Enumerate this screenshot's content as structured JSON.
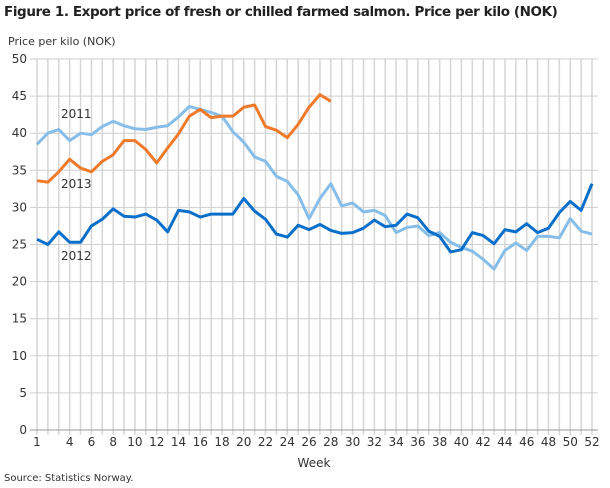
{
  "chart_data": {
    "type": "line",
    "title": "Figure 1. Export price of fresh or chilled farmed salmon. Price per kilo (NOK)",
    "ylabel": "Price per kilo (NOK)",
    "xlabel": "Week",
    "source": "Source: Statistics Norway.",
    "ylim": [
      0,
      50
    ],
    "yticks": [
      0,
      5,
      10,
      15,
      20,
      25,
      30,
      35,
      40,
      45,
      50
    ],
    "xlim": [
      1,
      52
    ],
    "xticks": [
      1,
      4,
      6,
      8,
      10,
      12,
      14,
      16,
      18,
      20,
      22,
      24,
      26,
      28,
      30,
      32,
      34,
      36,
      38,
      40,
      42,
      44,
      46,
      48,
      50,
      52
    ],
    "grid": true,
    "series": [
      {
        "name": "2011",
        "color": "#86bde9",
        "values": [
          38.5,
          40,
          40.5,
          39,
          40,
          39.8,
          40.9,
          41.6,
          41,
          40.6,
          40.5,
          40.8,
          41,
          42.2,
          43.6,
          43.2,
          42.8,
          42.3,
          40.2,
          38.8,
          36.8,
          36.2,
          34.2,
          33.5,
          31.7,
          28.5,
          31.2,
          33.2,
          30.2,
          30.6,
          29.4,
          29.6,
          28.9,
          26.6,
          27.3,
          27.5,
          26.2,
          26.6,
          25.3,
          24.6,
          24.1,
          23,
          21.7,
          24.2,
          25.2,
          24.2,
          26.1,
          26.1,
          25.9,
          28.5,
          26.8,
          26.4
        ]
      },
      {
        "name": "2012",
        "color": "#0a6fca",
        "values": [
          25.7,
          25,
          26.7,
          25.3,
          25.3,
          27.5,
          28.4,
          29.8,
          28.8,
          28.7,
          29.1,
          28.3,
          26.7,
          29.6,
          29.4,
          28.7,
          29.1,
          29.1,
          29.1,
          31.2,
          29.5,
          28.4,
          26.4,
          26,
          27.6,
          27,
          27.7,
          26.9,
          26.5,
          26.6,
          27.2,
          28.3,
          27.4,
          27.6,
          29.1,
          28.6,
          26.8,
          26.1,
          24,
          24.3,
          26.6,
          26.2,
          25.1,
          27,
          26.7,
          27.8,
          26.6,
          27.2,
          29.3,
          30.8,
          29.6,
          33.2
        ]
      },
      {
        "name": "2013",
        "color": "#ef7a2a",
        "values": [
          33.6,
          33.4,
          34.8,
          36.5,
          35.3,
          34.8,
          36.2,
          37.1,
          39,
          39,
          37.8,
          36,
          38,
          39.9,
          42.3,
          43.2,
          42.1,
          42.3,
          42.3,
          43.5,
          43.8,
          40.9,
          40.4,
          39.4,
          41.2,
          43.5,
          45.2,
          44.3
        ]
      }
    ]
  }
}
